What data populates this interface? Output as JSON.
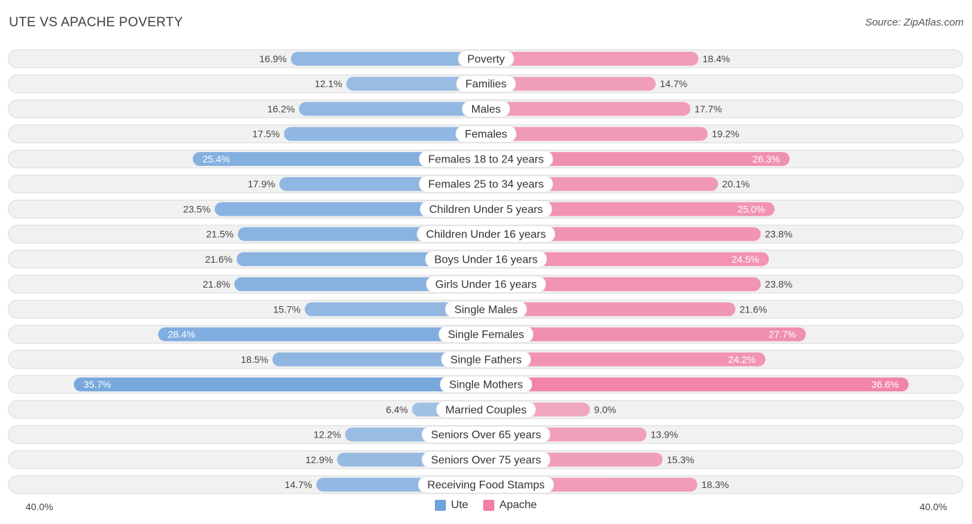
{
  "title": "UTE VS APACHE POVERTY",
  "source": "Source: ZipAtlas.com",
  "colors": {
    "ute": "#6fa3dc",
    "apache": "#f07fa3",
    "row_bg": "#f1f1f1",
    "row_border": "#dcdcdc"
  },
  "chart_data": {
    "type": "bar",
    "orientation": "horizontal-diverging",
    "title": "UTE VS APACHE POVERTY",
    "axis_max": 40.0,
    "axis_labels": {
      "left": "40.0%",
      "right": "40.0%"
    },
    "categories": [
      "Poverty",
      "Families",
      "Males",
      "Females",
      "Females 18 to 24 years",
      "Females 25 to 34 years",
      "Children Under 5 years",
      "Children Under 16 years",
      "Boys Under 16 years",
      "Girls Under 16 years",
      "Single Males",
      "Single Females",
      "Single Fathers",
      "Single Mothers",
      "Married Couples",
      "Seniors Over 65 years",
      "Seniors Over 75 years",
      "Receiving Food Stamps"
    ],
    "series": [
      {
        "name": "Ute",
        "values": [
          16.9,
          12.1,
          16.2,
          17.5,
          25.4,
          17.9,
          23.5,
          21.5,
          21.6,
          21.8,
          15.7,
          28.4,
          18.5,
          35.7,
          6.4,
          12.2,
          12.9,
          14.7
        ]
      },
      {
        "name": "Apache",
        "values": [
          18.4,
          14.7,
          17.7,
          19.2,
          26.3,
          20.1,
          25.0,
          23.8,
          24.5,
          23.8,
          21.6,
          27.7,
          24.2,
          36.6,
          9.0,
          13.9,
          15.3,
          18.3
        ]
      }
    ],
    "legend": {
      "position": "bottom-center",
      "items": [
        "Ute",
        "Apache"
      ]
    },
    "unit": "%"
  }
}
